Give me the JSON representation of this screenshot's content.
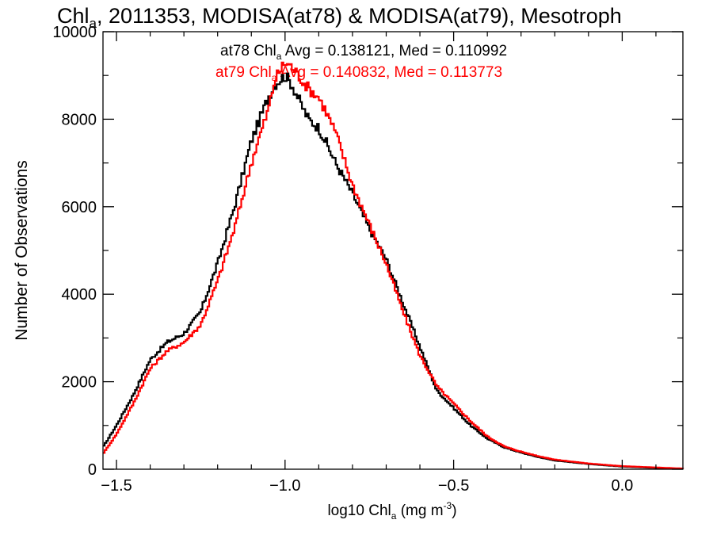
{
  "chart_data": {
    "type": "line",
    "title_parts": {
      "main": "Chl",
      "sub": "a",
      "rest": ", 2011353, MODISA(at78) & MODISA(at79), Mesotroph"
    },
    "xlabel_parts": {
      "main": "log10 Chl",
      "sub": "a",
      "unit": " (mg m",
      "sup": "-3",
      "close": ")"
    },
    "ylabel": "Number of Observations",
    "xlim": [
      -1.54,
      0.18
    ],
    "ylim": [
      0,
      10000
    ],
    "xticks": [
      -1.5,
      -1.0,
      -0.5,
      0.0
    ],
    "xtick_labels": [
      "−1.5",
      "−1.0",
      "−0.5",
      "0.0"
    ],
    "yticks": [
      0,
      2000,
      4000,
      6000,
      8000,
      10000
    ],
    "ytick_labels": [
      "0",
      "2000",
      "4000",
      "6000",
      "8000",
      "10000"
    ],
    "grid": false,
    "stats": [
      {
        "prefix": "at78 Chl",
        "sub": "a",
        "text": " Avg = 0.138121, Med = 0.110992",
        "color": "#000000"
      },
      {
        "prefix": "at79 Chl",
        "sub": "a",
        "text": " Avg = 0.140832, Med = 0.113773",
        "color": "#ff0000"
      }
    ],
    "series": [
      {
        "name": "at78",
        "color": "#000000",
        "x": [
          -1.54,
          -1.5,
          -1.45,
          -1.4,
          -1.35,
          -1.3,
          -1.25,
          -1.2,
          -1.15,
          -1.1,
          -1.08,
          -1.05,
          -1.03,
          -1.0,
          -0.98,
          -0.95,
          -0.93,
          -0.9,
          -0.88,
          -0.85,
          -0.8,
          -0.75,
          -0.7,
          -0.65,
          -0.6,
          -0.55,
          -0.5,
          -0.45,
          -0.4,
          -0.35,
          -0.3,
          -0.25,
          -0.2,
          -0.1,
          0.0,
          0.1,
          0.18
        ],
        "y": [
          500,
          1000,
          1700,
          2500,
          2900,
          3100,
          3600,
          4700,
          6000,
          7500,
          7900,
          8500,
          8800,
          9000,
          8800,
          8300,
          8000,
          7800,
          7500,
          7000,
          6300,
          5500,
          4800,
          3800,
          2800,
          1800,
          1400,
          1000,
          700,
          500,
          380,
          280,
          200,
          120,
          60,
          30,
          10
        ]
      },
      {
        "name": "at79",
        "color": "#ff0000",
        "x": [
          -1.54,
          -1.5,
          -1.45,
          -1.4,
          -1.35,
          -1.3,
          -1.25,
          -1.2,
          -1.15,
          -1.1,
          -1.08,
          -1.05,
          -1.03,
          -1.0,
          -0.98,
          -0.95,
          -0.93,
          -0.9,
          -0.88,
          -0.85,
          -0.8,
          -0.75,
          -0.7,
          -0.65,
          -0.6,
          -0.55,
          -0.5,
          -0.45,
          -0.4,
          -0.35,
          -0.3,
          -0.25,
          -0.2,
          -0.1,
          0.0,
          0.1,
          0.18
        ],
        "y": [
          350,
          800,
          1500,
          2300,
          2700,
          2900,
          3300,
          4300,
          5500,
          7000,
          7500,
          8200,
          8900,
          9300,
          9200,
          8900,
          8700,
          8500,
          8200,
          7700,
          6500,
          5600,
          4700,
          3600,
          2600,
          1900,
          1500,
          1100,
          750,
          520,
          400,
          300,
          220,
          130,
          70,
          40,
          15
        ]
      }
    ]
  }
}
